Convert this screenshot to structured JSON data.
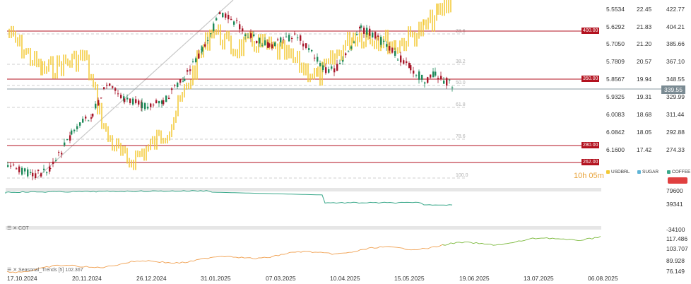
{
  "colors": {
    "bull": "#1e8a5a",
    "bear": "#a8172a",
    "gold": "#f2c833",
    "hline": "#b3121f",
    "teal": "#3aa88a",
    "orange": "#f0a050",
    "green": "#7ab83a",
    "sugar": "#5fb4d6",
    "coffee_badge": "#e04040"
  },
  "chart_data": {
    "type": "line",
    "x_labels": [
      "17.10.2024",
      "20.11.2024",
      "26.12.2024",
      "31.01.2025",
      "07.03.2025",
      "10.04.2025",
      "15.05.2025",
      "19.06.2025",
      "13.07.2025",
      "06.08.2025"
    ],
    "price_axis_coffee": [
      "422.77",
      "404.21",
      "385.66",
      "367.10",
      "348.55",
      "329.99",
      "311.44",
      "292.88",
      "274.33"
    ],
    "price_axis_sugar": [
      "22.45",
      "21.83",
      "21.20",
      "20.57",
      "19.94",
      "19.31",
      "18.68",
      "18.05",
      "17.42"
    ],
    "price_axis_usdbrl": [
      "5.5534",
      "5.6292",
      "5.7050",
      "5.7809",
      "5.8567",
      "5.9325",
      "6.0083",
      "6.0842",
      "6.1600"
    ],
    "current_price": "339.55",
    "horizontal_levels": [
      {
        "label": "400.00",
        "value": 400.0
      },
      {
        "label": "350.00",
        "value": 350.0
      },
      {
        "label": "280.00",
        "value": 280.0
      },
      {
        "label": "262.00",
        "value": 262.0
      }
    ],
    "fibonacci_levels": [
      "23.6",
      "38.2",
      "50.0",
      "61.8",
      "78.6",
      "100.0"
    ],
    "legend": [
      "USDBRL",
      "SUGAR",
      "COFFEE"
    ],
    "timer": "10h 05m",
    "panel2_axis": [
      "79600",
      "39341",
      "-34100"
    ],
    "panel3_axis": [
      "117.486",
      "103.707",
      "89.928",
      "76.149"
    ],
    "panel2_label": "COT",
    "panel3_label": "Seasonal_Trends [5] 102.367"
  }
}
